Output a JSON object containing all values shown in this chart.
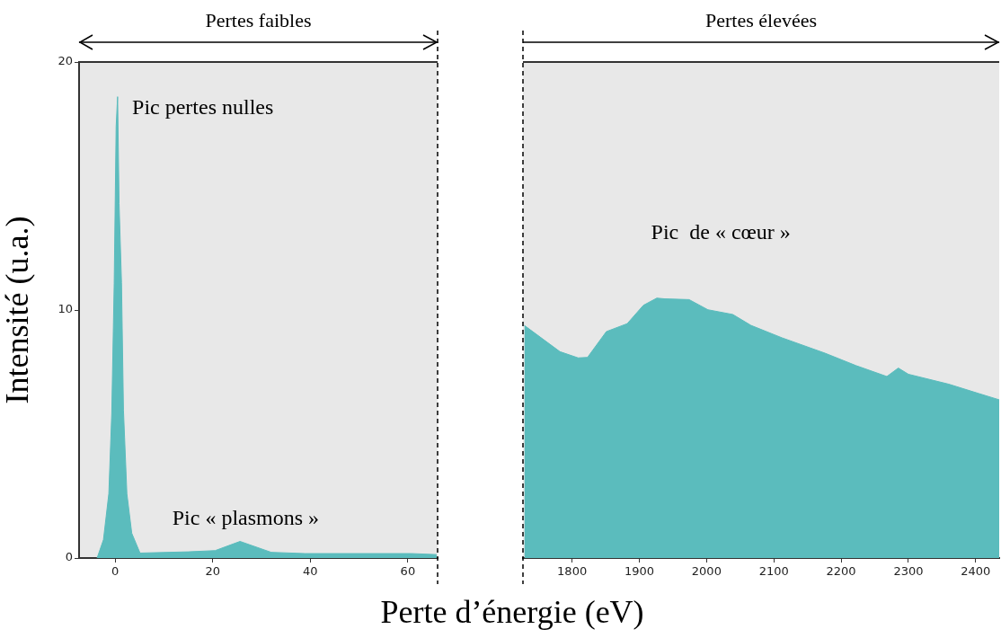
{
  "chart_data": [
    {
      "type": "area",
      "title": "Pertes faibles",
      "ylabel": "Intensité (u.a.)",
      "xlabel": "Perte d’énergie (eV)",
      "color": "#5bbcbd",
      "x": [
        -3.7,
        -2.4,
        -1.3,
        -0.7,
        -0.2,
        0.2,
        0.5,
        0.8,
        1.3,
        1.7,
        2.4,
        3.4,
        5.1,
        15,
        20.5,
        25.6,
        32,
        38.9,
        60.7,
        65.9
      ],
      "values": [
        0,
        0.74,
        2.6,
        5.83,
        11.07,
        17.4,
        18.6,
        14.3,
        11.1,
        5.97,
        2.6,
        1.0,
        0.2,
        0.25,
        0.3,
        0.67,
        0.23,
        0.18,
        0.18,
        0.14
      ],
      "xlim": [
        -7.4,
        66.1
      ],
      "xticks": [
        0,
        20,
        40,
        60
      ],
      "ylim": [
        0,
        20
      ],
      "yticks": [
        0,
        10,
        20
      ],
      "ref_lines": [
        {
          "axis": "x",
          "value": 66.1,
          "label": null,
          "color": "#000000",
          "line_style": "dashed"
        }
      ],
      "annotations": [
        "Pic pertes nulles",
        "Pic « plasmons »"
      ]
    },
    {
      "type": "area",
      "title": "Pertes élevées",
      "color": "#5bbcbd",
      "x": [
        1729,
        1782,
        1809,
        1823,
        1841,
        1851,
        1882,
        1906,
        1926,
        1938,
        1974,
        2002,
        2039,
        2066,
        2112,
        2176,
        2222,
        2268,
        2285,
        2300,
        2360,
        2405,
        2435
      ],
      "values": [
        9.38,
        8.32,
        8.07,
        8.09,
        8.76,
        9.13,
        9.45,
        10.19,
        10.48,
        10.45,
        10.42,
        10.01,
        9.82,
        9.38,
        8.88,
        8.26,
        7.76,
        7.32,
        7.66,
        7.41,
        7.01,
        6.63,
        6.38
      ],
      "xlim": [
        1727,
        2435
      ],
      "xticks": [
        1800,
        1900,
        2000,
        2100,
        2200,
        2300,
        2400
      ],
      "ylim": [
        0,
        20
      ],
      "yticks": [
        0,
        10,
        20
      ],
      "tick_labels": "x",
      "ref_lines": [
        {
          "axis": "x",
          "value": 1727,
          "label": null,
          "color": "#000000",
          "line_style": "dashed"
        }
      ],
      "annotations": [
        "Pic  de « cœur »"
      ]
    }
  ]
}
